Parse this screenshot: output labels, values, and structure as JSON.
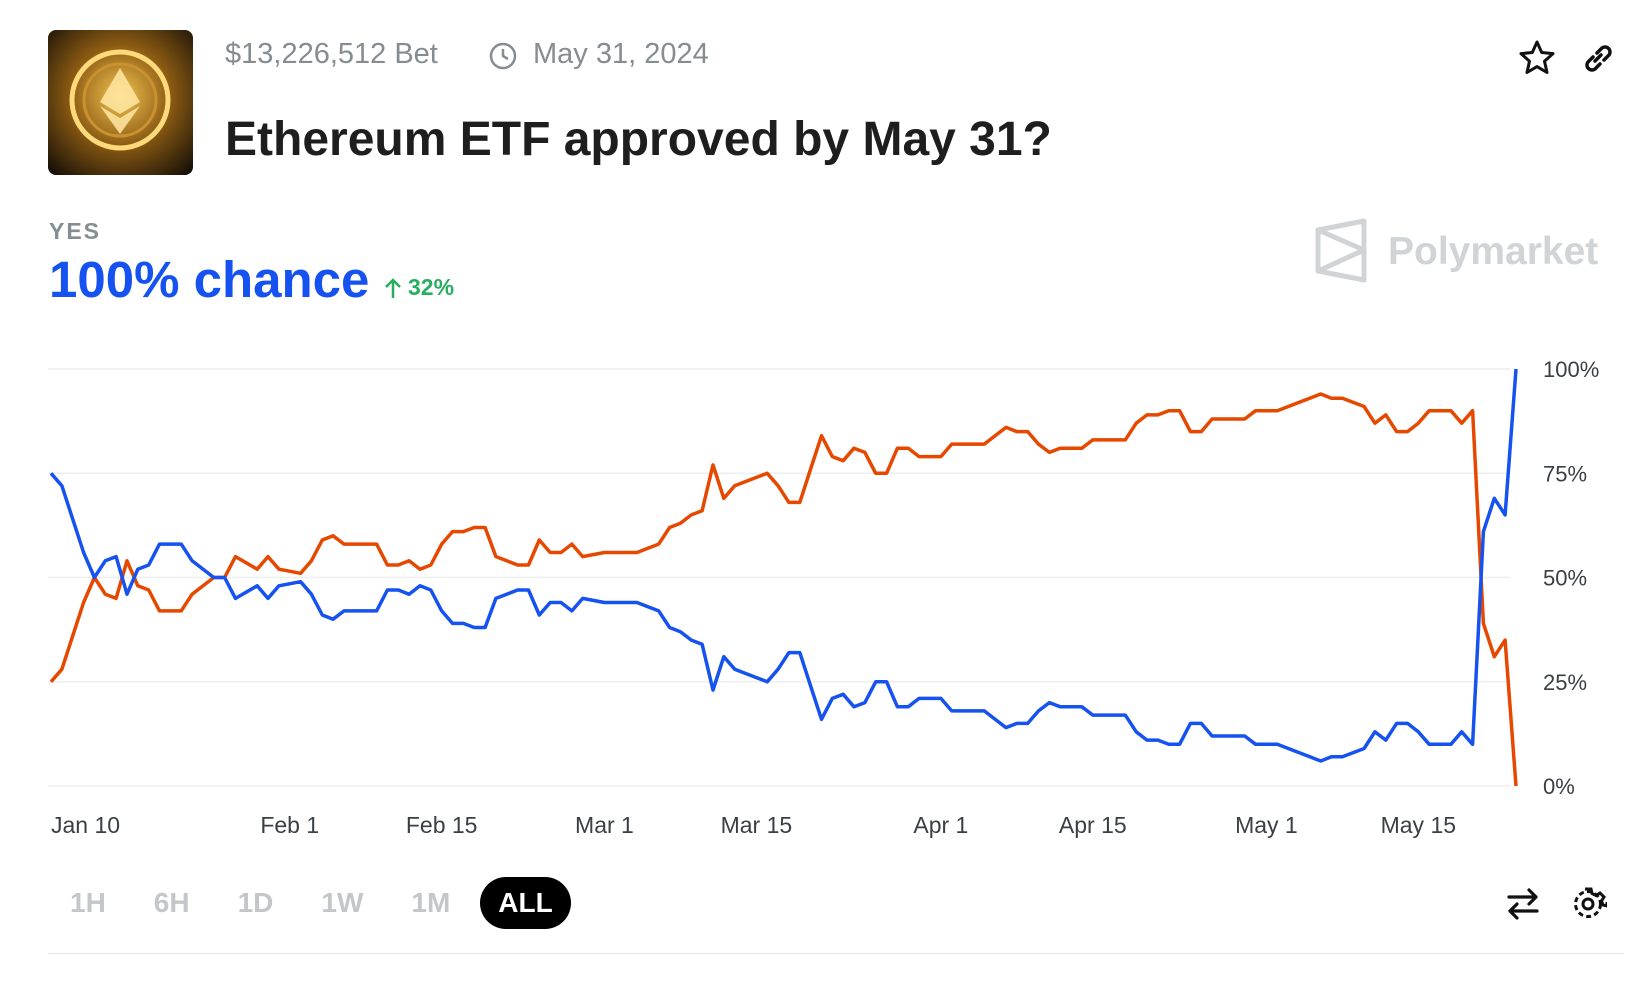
{
  "header": {
    "bet": "$13,226,512 Bet",
    "date": "May 31, 2024",
    "title": "Ethereum ETF approved by May 31?"
  },
  "outcome": {
    "label": "YES",
    "chance": "100% chance",
    "change": "32%"
  },
  "brand": "Polymarket",
  "timeframes": {
    "options": [
      "1H",
      "6H",
      "1D",
      "1W",
      "1M",
      "ALL"
    ],
    "selected": 5
  },
  "chart_data": {
    "type": "line",
    "x": [
      "Jan 10",
      "Jan 11",
      "Jan 12",
      "Jan 13",
      "Jan 14",
      "Jan 15",
      "Jan 16",
      "Jan 17",
      "Jan 18",
      "Jan 19",
      "Jan 20",
      "Jan 22",
      "Jan 23",
      "Jan 25",
      "Jan 26",
      "Jan 27",
      "Jan 29",
      "Jan 30",
      "Jan 31",
      "Feb 2",
      "Feb 3",
      "Feb 4",
      "Feb 5",
      "Feb 6",
      "Feb 8",
      "Feb 9",
      "Feb 10",
      "Feb 11",
      "Feb 12",
      "Feb 13",
      "Feb 14",
      "Feb 15",
      "Feb 16",
      "Feb 17",
      "Feb 18",
      "Feb 19",
      "Feb 20",
      "Feb 22",
      "Feb 23",
      "Feb 24",
      "Feb 25",
      "Feb 26",
      "Feb 27",
      "Feb 28",
      "Mar 1",
      "Mar 4",
      "Mar 5",
      "Mar 6",
      "Mar 7",
      "Mar 8",
      "Mar 9",
      "Mar 10",
      "Mar 11",
      "Mar 12",
      "Mar 13",
      "Mar 15",
      "Mar 16",
      "Mar 17",
      "Mar 18",
      "Mar 19",
      "Mar 20",
      "Mar 21",
      "Mar 22",
      "Mar 23",
      "Mar 24",
      "Mar 25",
      "Mar 26",
      "Mar 27",
      "Mar 28",
      "Mar 29",
      "Mar 30",
      "Apr 1",
      "Apr 2",
      "Apr 5",
      "Apr 6",
      "Apr 7",
      "Apr 8",
      "Apr 9",
      "Apr 10",
      "Apr 11",
      "Apr 12",
      "Apr 14",
      "Apr 15",
      "Apr 18",
      "Apr 19",
      "Apr 20",
      "Apr 21",
      "Apr 22",
      "Apr 23",
      "Apr 24",
      "Apr 25",
      "Apr 26",
      "Apr 27",
      "Apr 29",
      "Apr 30",
      "May 2",
      "May 4",
      "May 5",
      "May 6",
      "May 7",
      "May 8",
      "May 10",
      "May 11",
      "May 12",
      "May 13",
      "May 14",
      "May 15",
      "May 16",
      "May 18",
      "May 19",
      "May 20",
      "May 21",
      "May 22",
      "May 23",
      "May 24"
    ],
    "series": [
      {
        "color": "#1652f0",
        "values": [
          75,
          72,
          64,
          56,
          50,
          54,
          55,
          46,
          52,
          53,
          58,
          58,
          54,
          50,
          50,
          45,
          48,
          45,
          48,
          49,
          46,
          41,
          40,
          42,
          42,
          42,
          47,
          47,
          46,
          48,
          47,
          42,
          39,
          39,
          38,
          38,
          45,
          47,
          47,
          41,
          44,
          44,
          42,
          45,
          44,
          44,
          43,
          42,
          38,
          37,
          35,
          34,
          23,
          31,
          28,
          26,
          25,
          28,
          32,
          32,
          24,
          16,
          21,
          22,
          19,
          20,
          25,
          25,
          19,
          19,
          21,
          21,
          18,
          18,
          16,
          14,
          15,
          15,
          18,
          20,
          19,
          19,
          17,
          17,
          13,
          11,
          11,
          10,
          10,
          15,
          15,
          12,
          12,
          12,
          10,
          10,
          8,
          7,
          6,
          7,
          7,
          9,
          13,
          11,
          15,
          15,
          13,
          10,
          10,
          13,
          10,
          61,
          69,
          65,
          100
        ]
      },
      {
        "color": "#e64800",
        "values": [
          25,
          28,
          36,
          44,
          50,
          46,
          45,
          54,
          48,
          47,
          42,
          42,
          46,
          50,
          50,
          55,
          52,
          55,
          52,
          51,
          54,
          59,
          60,
          58,
          58,
          58,
          53,
          53,
          54,
          52,
          53,
          58,
          61,
          61,
          62,
          62,
          55,
          53,
          53,
          59,
          56,
          56,
          58,
          55,
          56,
          56,
          57,
          58,
          62,
          63,
          65,
          66,
          77,
          69,
          72,
          74,
          75,
          72,
          68,
          68,
          76,
          84,
          79,
          78,
          81,
          80,
          75,
          75,
          81,
          81,
          79,
          79,
          82,
          82,
          84,
          86,
          85,
          85,
          82,
          80,
          81,
          81,
          83,
          83,
          87,
          89,
          89,
          90,
          90,
          85,
          85,
          88,
          88,
          88,
          90,
          90,
          92,
          93,
          94,
          93,
          93,
          91,
          87,
          89,
          85,
          85,
          87,
          90,
          90,
          87,
          90,
          39,
          31,
          35,
          0
        ]
      }
    ],
    "xticks": [
      "Jan 10",
      "Feb 1",
      "Feb 15",
      "Mar 1",
      "Mar 15",
      "Apr 1",
      "Apr 15",
      "May 1",
      "May 15"
    ],
    "ylim": [
      0,
      100
    ],
    "yticks": [
      {
        "value": 0,
        "label": "0%"
      },
      {
        "value": 25,
        "label": "25%"
      },
      {
        "value": 50,
        "label": "50%"
      },
      {
        "value": 75,
        "label": "75%"
      },
      {
        "value": 100,
        "label": "100%"
      }
    ],
    "grid": true
  }
}
